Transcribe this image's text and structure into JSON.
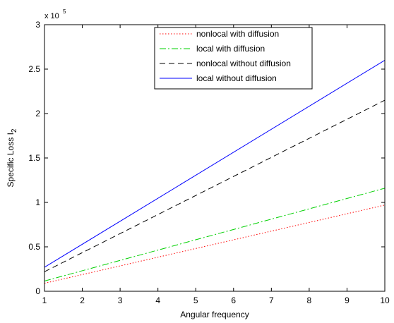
{
  "chart_data": {
    "type": "line",
    "xlabel": "Angular frequency",
    "ylabel_main": "Specific Loss I",
    "ylabel_sub": "2",
    "exponent_base": "x 10",
    "exponent_power": "5",
    "xlim": [
      1,
      10
    ],
    "ylim": [
      0,
      3
    ],
    "x_ticks": [
      1,
      2,
      3,
      4,
      5,
      6,
      7,
      8,
      9,
      10
    ],
    "y_ticks": [
      0,
      0.5,
      1,
      1.5,
      2,
      2.5,
      3
    ],
    "y_tick_labels": [
      "0",
      "0.5",
      "1",
      "1.5",
      "2",
      "2.5",
      "3"
    ],
    "grid": false,
    "legend_position": "top-right",
    "series": [
      {
        "name": "nonlocal with diffusion",
        "x": [
          1,
          10
        ],
        "values": [
          0.09,
          0.97
        ],
        "color": "#ff0000",
        "dash": "1.5,2.5"
      },
      {
        "name": "local with diffusion",
        "x": [
          1,
          10
        ],
        "values": [
          0.115,
          1.16
        ],
        "color": "#00d000",
        "dash": "9,3,2,3"
      },
      {
        "name": "nonlocal without diffusion",
        "x": [
          1,
          10
        ],
        "values": [
          0.22,
          2.15
        ],
        "color": "#000000",
        "dash": "8,5"
      },
      {
        "name": "local without diffusion",
        "x": [
          1,
          10
        ],
        "values": [
          0.27,
          2.6
        ],
        "color": "#0000ff",
        "dash": ""
      }
    ]
  }
}
